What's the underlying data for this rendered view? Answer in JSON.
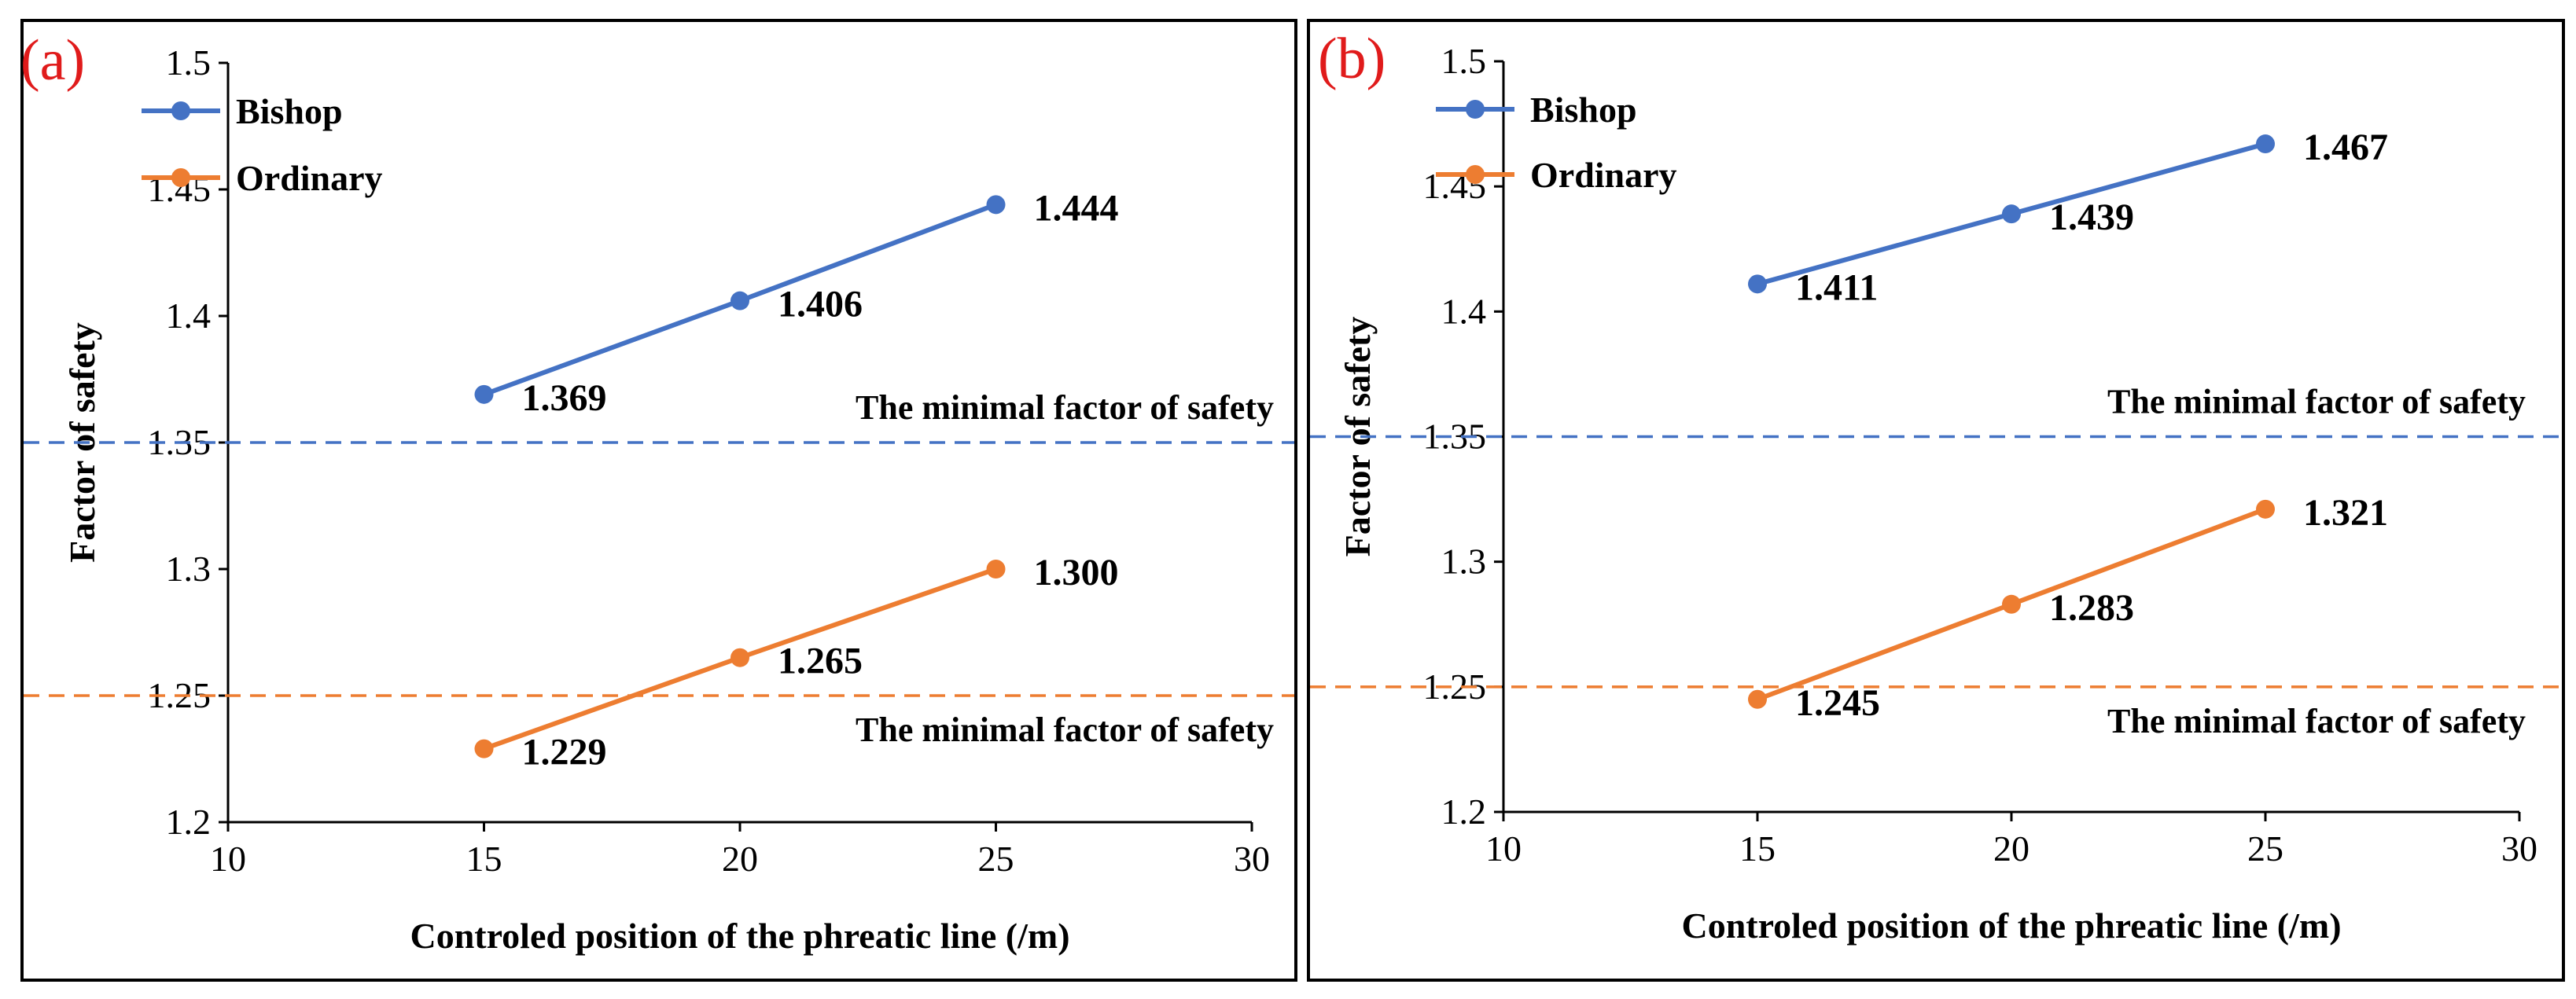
{
  "chart_data": [
    {
      "type": "line",
      "panel_label": "(a)",
      "xlabel": "Controled position of the phreatic line (/m)",
      "ylabel": "Factor of safety",
      "xlim": [
        10,
        30
      ],
      "ylim": [
        1.2,
        1.5
      ],
      "x_ticks": [
        10,
        15,
        20,
        25,
        30
      ],
      "y_ticks": [
        1.2,
        1.25,
        1.3,
        1.35,
        1.4,
        1.45,
        1.5
      ],
      "x_tick_labels": [
        "10",
        "15",
        "20",
        "25",
        "30"
      ],
      "y_tick_labels": [
        "1.2",
        "1.25",
        "1.3",
        "1.35",
        "1.4",
        "1.45",
        "1.5"
      ],
      "legend_position": "top-left",
      "series": [
        {
          "name": "Bishop",
          "color": "#4472c4",
          "x": [
            15,
            20,
            25
          ],
          "values": [
            1.369,
            1.406,
            1.444
          ],
          "labels": [
            "1.369",
            "1.406",
            "1.444"
          ]
        },
        {
          "name": "Ordinary",
          "color": "#ed7d31",
          "x": [
            15,
            20,
            25
          ],
          "values": [
            1.229,
            1.265,
            1.3
          ],
          "labels": [
            "1.229",
            "1.265",
            "1.300"
          ]
        }
      ],
      "reference_lines": [
        {
          "y": 1.35,
          "color": "#4472c4",
          "label": "The minimal factor of safety",
          "label_side": "above"
        },
        {
          "y": 1.25,
          "color": "#ed7d31",
          "label": "The minimal factor of safety",
          "label_side": "below"
        }
      ]
    },
    {
      "type": "line",
      "panel_label": "(b)",
      "xlabel": "Controled position of the phreatic line (/m)",
      "ylabel": "Factor of safety",
      "xlim": [
        10,
        30
      ],
      "ylim": [
        1.2,
        1.5
      ],
      "x_ticks": [
        10,
        15,
        20,
        25,
        30
      ],
      "y_ticks": [
        1.2,
        1.25,
        1.3,
        1.35,
        1.4,
        1.45,
        1.5
      ],
      "x_tick_labels": [
        "10",
        "15",
        "20",
        "25",
        "30"
      ],
      "y_tick_labels": [
        "1.2",
        "1.25",
        "1.3",
        "1.35",
        "1.4",
        "1.45",
        "1.5"
      ],
      "legend_position": "top-left",
      "series": [
        {
          "name": "Bishop",
          "color": "#4472c4",
          "x": [
            15,
            20,
            25
          ],
          "values": [
            1.411,
            1.439,
            1.467
          ],
          "labels": [
            "1.411",
            "1.439",
            "1.467"
          ]
        },
        {
          "name": "Ordinary",
          "color": "#ed7d31",
          "x": [
            15,
            20,
            25
          ],
          "values": [
            1.245,
            1.283,
            1.321
          ],
          "labels": [
            "1.245",
            "1.283",
            "1.321"
          ]
        }
      ],
      "reference_lines": [
        {
          "y": 1.35,
          "color": "#4472c4",
          "label": "The minimal factor of safety",
          "label_side": "above"
        },
        {
          "y": 1.25,
          "color": "#ed7d31",
          "label": "The minimal factor of safety",
          "label_side": "below"
        }
      ]
    }
  ]
}
